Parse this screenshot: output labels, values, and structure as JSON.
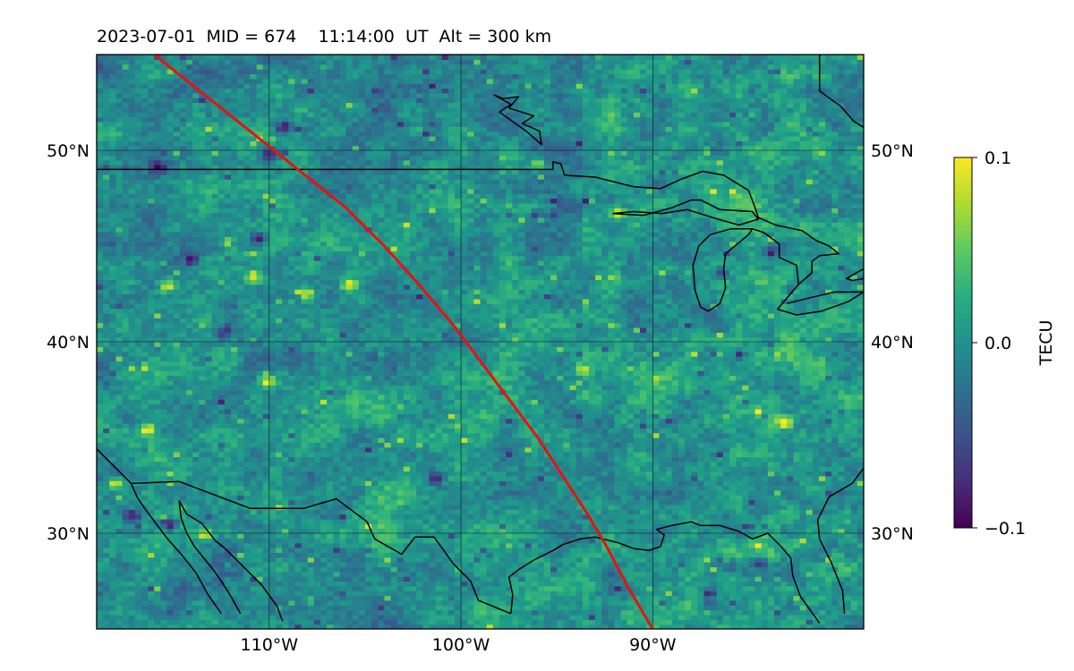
{
  "title": "2023-07-01  MID = 674    11:14:00  UT  Alt = 300 km",
  "map": {
    "extent": {
      "lon": [
        -119,
        -79
      ],
      "lat": [
        25,
        55
      ]
    },
    "gridlines": {
      "lon": [
        -110,
        -100,
        -90
      ],
      "lat": [
        30,
        40,
        50
      ]
    },
    "lon_labels": [
      {
        "lon": -110,
        "text": "110°W"
      },
      {
        "lon": -100,
        "text": "100°W"
      },
      {
        "lon": -90,
        "text": "90°W"
      }
    ],
    "lat_labels": [
      {
        "lat": 30,
        "text": "30°N"
      },
      {
        "lat": 40,
        "text": "40°N"
      },
      {
        "lat": 50,
        "text": "50°N"
      }
    ],
    "track_color": "#e8120c",
    "track": [
      [
        -116,
        55
      ],
      [
        -113.5,
        53
      ],
      [
        -111,
        51
      ],
      [
        -108.5,
        49
      ],
      [
        -106,
        47
      ],
      [
        -104,
        45
      ],
      [
        -102.2,
        43
      ],
      [
        -100.5,
        41
      ],
      [
        -99,
        39
      ],
      [
        -97.5,
        37
      ],
      [
        -96,
        35
      ],
      [
        -94.7,
        33
      ],
      [
        -93.4,
        31
      ],
      [
        -92.4,
        29.3
      ],
      [
        -91.3,
        27.2
      ],
      [
        -90,
        25
      ]
    ]
  },
  "colorbar": {
    "label": "TECU",
    "min": -0.1,
    "max": 0.1,
    "ticks": [
      {
        "value": 0.1,
        "text": "0.1"
      },
      {
        "value": 0.0,
        "text": "0.0"
      },
      {
        "value": -0.1,
        "text": "−0.1"
      }
    ]
  },
  "colormap": "viridis",
  "field": {
    "description_of_values": "dTEC anomalies, mostly near 0 with scattered positive and negative patches",
    "positive_patches": [
      {
        "lon": -115.5,
        "lat": 42.8,
        "v": 0.09
      },
      {
        "lon": -111,
        "lat": 43.3,
        "v": 0.1
      },
      {
        "lon": -110.3,
        "lat": 37.8,
        "v": 0.1
      },
      {
        "lon": -108.2,
        "lat": 42.4,
        "v": 0.09
      },
      {
        "lon": -106,
        "lat": 42.9,
        "v": 0.1
      },
      {
        "lon": -96.2,
        "lat": 49.2,
        "v": 0.09
      },
      {
        "lon": -92,
        "lat": 46.6,
        "v": 0.1
      },
      {
        "lon": -93.8,
        "lat": 38.4,
        "v": 0.09
      },
      {
        "lon": -83.3,
        "lat": 35.7,
        "v": 0.1
      },
      {
        "lon": -113.5,
        "lat": 29.8,
        "v": 0.1
      },
      {
        "lon": -118.2,
        "lat": 32.5,
        "v": 0.09
      },
      {
        "lon": -116.5,
        "lat": 35.3,
        "v": 0.09
      }
    ],
    "negative_patches": [
      {
        "lon": -109.4,
        "lat": 51.1,
        "v": -0.1
      },
      {
        "lon": -115.9,
        "lat": 49.0,
        "v": -0.09
      },
      {
        "lon": -110.2,
        "lat": 49.7,
        "v": -0.09
      },
      {
        "lon": -114.2,
        "lat": 44.2,
        "v": -0.1
      },
      {
        "lon": -110.7,
        "lat": 45.3,
        "v": -0.09
      },
      {
        "lon": -115.4,
        "lat": 30.4,
        "v": -0.1
      },
      {
        "lon": -117.3,
        "lat": 30.8,
        "v": -0.09
      },
      {
        "lon": -112.5,
        "lat": 40.4,
        "v": -0.08
      },
      {
        "lon": -84.0,
        "lat": 44.6,
        "v": -0.09
      },
      {
        "lon": -86.5,
        "lat": 43.5,
        "v": -0.08
      },
      {
        "lon": -101.5,
        "lat": 32.8,
        "v": -0.08
      },
      {
        "lon": -84.6,
        "lat": 28.3,
        "v": -0.08
      }
    ]
  },
  "coastlines": {
    "us_canada_border": [
      [
        -119,
        49
      ],
      [
        -95.2,
        49
      ],
      [
        -95.2,
        49.4
      ],
      [
        -94.8,
        49.3
      ],
      [
        -94.6,
        48.7
      ],
      [
        -93,
        48.6
      ],
      [
        -91,
        48.1
      ],
      [
        -89.6,
        48.0
      ]
    ],
    "lake_superior": [
      [
        -92.1,
        46.7
      ],
      [
        -90.5,
        46.6
      ],
      [
        -89,
        47.0
      ],
      [
        -88,
        47.4
      ],
      [
        -87.5,
        47.4
      ],
      [
        -86.5,
        46.9
      ],
      [
        -84.8,
        46.8
      ],
      [
        -84.5,
        46.4
      ],
      [
        -85.5,
        46.1
      ],
      [
        -86.6,
        46.4
      ],
      [
        -88.2,
        46.9
      ],
      [
        -89.5,
        46.7
      ],
      [
        -91,
        46.8
      ],
      [
        -92.1,
        46.7
      ]
    ],
    "canada_north_shore": [
      [
        -89.6,
        48.0
      ],
      [
        -88.5,
        48.5
      ],
      [
        -87.4,
        48.9
      ],
      [
        -86.3,
        48.7
      ],
      [
        -85,
        47.9
      ],
      [
        -84.7,
        47.1
      ],
      [
        -84.5,
        46.5
      ],
      [
        -83.6,
        46.1
      ]
    ],
    "lake_michigan": [
      [
        -84.8,
        45.9
      ],
      [
        -85.9,
        45.9
      ],
      [
        -87.0,
        45.6
      ],
      [
        -87.6,
        45.0
      ],
      [
        -87.9,
        44.0
      ],
      [
        -87.8,
        42.7
      ],
      [
        -87.5,
        41.8
      ],
      [
        -87.1,
        41.6
      ],
      [
        -86.5,
        42.0
      ],
      [
        -86.2,
        42.8
      ],
      [
        -86.3,
        43.8
      ],
      [
        -86.2,
        44.6
      ],
      [
        -85.6,
        45.1
      ],
      [
        -85.0,
        45.6
      ],
      [
        -84.8,
        45.9
      ]
    ],
    "michigan_thumb": [
      [
        -84.8,
        45.9
      ],
      [
        -84.2,
        45.7
      ],
      [
        -83.4,
        45.1
      ],
      [
        -83.4,
        44.4
      ],
      [
        -82.5,
        44.0
      ],
      [
        -82.4,
        43.0
      ],
      [
        -82.9,
        42.4
      ],
      [
        -83.5,
        41.7
      ]
    ],
    "lake_erie": [
      [
        -83.5,
        41.7
      ],
      [
        -82.5,
        41.4
      ],
      [
        -81.2,
        41.6
      ],
      [
        -79.8,
        42.1
      ],
      [
        -79.0,
        42.6
      ],
      [
        -80.5,
        42.6
      ],
      [
        -81.8,
        42.3
      ],
      [
        -83.0,
        42.0
      ]
    ],
    "lake_huron_georgian": [
      [
        -83.6,
        46.1
      ],
      [
        -82.2,
        45.8
      ],
      [
        -81.5,
        45.3
      ],
      [
        -80.8,
        45.0
      ],
      [
        -80.3,
        44.6
      ],
      [
        -81.3,
        44.5
      ],
      [
        -81.7,
        44.2
      ],
      [
        -81.7,
        43.6
      ],
      [
        -82.4,
        43.0
      ]
    ],
    "lake_ontario_edge": [
      [
        -79.0,
        43.3
      ],
      [
        -79.6,
        43.2
      ],
      [
        -79.9,
        43.3
      ],
      [
        -79.2,
        43.7
      ],
      [
        -79.0,
        43.8
      ]
    ],
    "hudson_bay_edge": [
      [
        -81.3,
        55
      ],
      [
        -81.3,
        53.1
      ],
      [
        -80.2,
        52.3
      ],
      [
        -79.5,
        51.5
      ],
      [
        -79,
        51.2
      ]
    ],
    "james_bay_island": [
      [
        -98.3,
        52.9
      ],
      [
        -97.8,
        52.7
      ],
      [
        -97.0,
        52.8
      ],
      [
        -97.5,
        52.2
      ],
      [
        -96.2,
        51.8
      ],
      [
        -96.8,
        51.4
      ],
      [
        -95.9,
        51.0
      ],
      [
        -95.8,
        50.3
      ],
      [
        -96.6,
        51.0
      ],
      [
        -97.3,
        51.5
      ],
      [
        -98.0,
        52.0
      ],
      [
        -97.4,
        52.4
      ],
      [
        -98.3,
        52.9
      ]
    ],
    "us_mexico_border": [
      [
        -119,
        34.4
      ],
      [
        -117.2,
        32.6
      ],
      [
        -114.7,
        32.7
      ],
      [
        -111,
        31.3
      ],
      [
        -108.2,
        31.3
      ],
      [
        -106.5,
        31.8
      ],
      [
        -104.9,
        30.6
      ],
      [
        -104.5,
        29.7
      ],
      [
        -103.1,
        28.9
      ],
      [
        -102.4,
        29.8
      ],
      [
        -101.4,
        29.8
      ],
      [
        -100.4,
        28.4
      ],
      [
        -99.5,
        27.5
      ],
      [
        -99.1,
        26.5
      ],
      [
        -97.4,
        25.8
      ]
    ],
    "gulf_coast": [
      [
        -97.4,
        25.8
      ],
      [
        -97.3,
        26.8
      ],
      [
        -97.5,
        27.7
      ],
      [
        -97.0,
        28.1
      ],
      [
        -96.2,
        28.6
      ],
      [
        -95.2,
        29.1
      ],
      [
        -94.7,
        29.4
      ],
      [
        -93.8,
        29.7
      ],
      [
        -93.0,
        29.8
      ],
      [
        -91.8,
        29.5
      ],
      [
        -91.0,
        29.2
      ],
      [
        -90.2,
        29.1
      ],
      [
        -89.6,
        29.3
      ],
      [
        -89.4,
        29.9
      ],
      [
        -89.8,
        30.2
      ],
      [
        -89.0,
        30.4
      ],
      [
        -88.0,
        30.6
      ],
      [
        -87.5,
        30.4
      ],
      [
        -86.5,
        30.4
      ],
      [
        -85.5,
        30.1
      ],
      [
        -84.8,
        29.7
      ],
      [
        -84.0,
        30.0
      ],
      [
        -83.3,
        29.3
      ],
      [
        -82.8,
        28.7
      ],
      [
        -82.7,
        27.8
      ],
      [
        -82.3,
        26.7
      ],
      [
        -81.8,
        26.0
      ],
      [
        -81.3,
        25.3
      ]
    ],
    "florida_atlantic": [
      [
        -79,
        33.4
      ],
      [
        -79.6,
        32.6
      ],
      [
        -80.8,
        31.9
      ],
      [
        -81.4,
        30.7
      ],
      [
        -81.3,
        29.7
      ],
      [
        -80.7,
        28.5
      ],
      [
        -80.1,
        27.0
      ],
      [
        -80.0,
        25.8
      ]
    ],
    "baja_coast": [
      [
        -117.2,
        32.6
      ],
      [
        -116.9,
        31.9
      ],
      [
        -116.5,
        31.3
      ],
      [
        -115.9,
        30.5
      ],
      [
        -115.3,
        29.7
      ],
      [
        -114.5,
        28.8
      ],
      [
        -113.8,
        27.9
      ],
      [
        -113.2,
        26.8
      ],
      [
        -112.5,
        25.8
      ]
    ],
    "gulf_of_california_mainland": [
      [
        -114.7,
        31.7
      ],
      [
        -114.3,
        31.0
      ],
      [
        -113.5,
        30.5
      ],
      [
        -112.8,
        29.6
      ],
      [
        -112.3,
        29.2
      ],
      [
        -111.7,
        28.6
      ],
      [
        -111.0,
        27.9
      ],
      [
        -110.4,
        27.3
      ],
      [
        -109.6,
        26.2
      ],
      [
        -109.3,
        25.4
      ]
    ],
    "baja_inner": [
      [
        -114.7,
        31.7
      ],
      [
        -114.6,
        30.8
      ],
      [
        -114.3,
        30.0
      ],
      [
        -113.9,
        29.3
      ],
      [
        -113.0,
        28.2
      ],
      [
        -112.5,
        27.5
      ],
      [
        -112.0,
        26.7
      ],
      [
        -111.5,
        25.8
      ]
    ]
  }
}
